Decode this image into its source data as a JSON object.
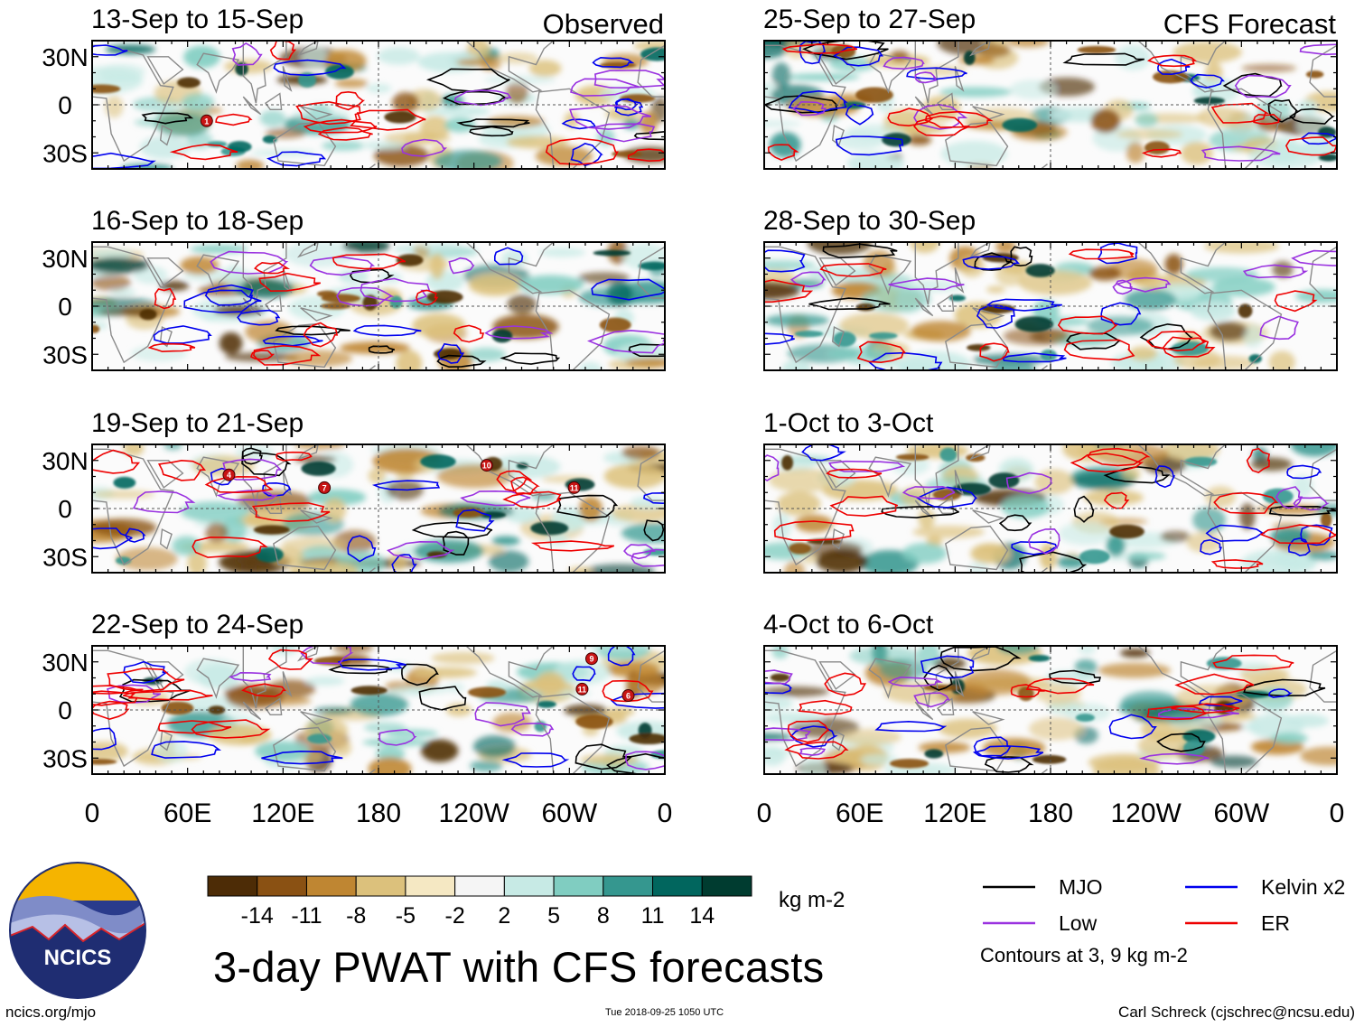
{
  "chart_data": {
    "type": "heatmap",
    "title": "3-day PWAT with CFS forecasts",
    "units": "kg m-2",
    "columns": [
      {
        "header": "Observed",
        "panels": [
          {
            "period": "13-Sep to 15-Sep",
            "storms": [
              {
                "id": "1",
                "lon": 72,
                "lat": -10
              }
            ]
          },
          {
            "period": "16-Sep to 18-Sep",
            "storms": []
          },
          {
            "period": "19-Sep to 21-Sep",
            "storms": [
              {
                "id": "4",
                "lon": 86,
                "lat": 21
              },
              {
                "id": "7",
                "lon": 146,
                "lat": 13
              },
              {
                "id": "10",
                "lon": 248,
                "lat": 27
              },
              {
                "id": "11",
                "lon": 303,
                "lat": 13
              }
            ]
          },
          {
            "period": "22-Sep to 24-Sep",
            "storms": [
              {
                "id": "9",
                "lon": 314,
                "lat": 32
              },
              {
                "id": "11",
                "lon": 308,
                "lat": 13
              },
              {
                "id": "6",
                "lon": 337,
                "lat": 9
              }
            ]
          }
        ]
      },
      {
        "header": "CFS Forecast",
        "panels": [
          {
            "period": "25-Sep to 27-Sep",
            "storms": []
          },
          {
            "period": "28-Sep to 30-Sep",
            "storms": []
          },
          {
            "period": "1-Oct to 3-Oct",
            "storms": []
          },
          {
            "period": "4-Oct to 6-Oct",
            "storms": []
          }
        ]
      }
    ],
    "x_ticks": [
      {
        "label": "0",
        "lon": 0
      },
      {
        "label": "60E",
        "lon": 60
      },
      {
        "label": "120E",
        "lon": 120
      },
      {
        "label": "180",
        "lon": 180
      },
      {
        "label": "120W",
        "lon": 240
      },
      {
        "label": "60W",
        "lon": 300
      },
      {
        "label": "0",
        "lon": 360
      }
    ],
    "y_ticks": [
      {
        "label": "30N",
        "lat": 30
      },
      {
        "label": "0",
        "lat": 0
      },
      {
        "label": "30S",
        "lat": -30
      }
    ],
    "lat_range": [
      -40,
      40
    ],
    "lon_range": [
      0,
      360
    ],
    "colorbar": {
      "ticks": [
        "-14",
        "-11",
        "-8",
        "-5",
        "-2",
        "2",
        "5",
        "8",
        "11",
        "14"
      ],
      "colors": [
        "#4d2c06",
        "#8a5113",
        "#bf8632",
        "#dcc17c",
        "#f5e8c3",
        "#f5f5f5",
        "#c7eae5",
        "#80cdc1",
        "#35978f",
        "#01665e",
        "#003c30"
      ]
    },
    "legend": [
      {
        "label": "MJO",
        "color": "#000000"
      },
      {
        "label": "Kelvin x2",
        "color": "#0000ee"
      },
      {
        "label": "Low",
        "color": "#9a32e0"
      },
      {
        "label": "ER",
        "color": "#ee0000"
      }
    ],
    "contour_note": "Contours at 3, 9 kg m-2"
  },
  "logo": {
    "text": "NCICS"
  },
  "footer": {
    "url": "ncics.org/mjo",
    "timestamp": "Tue 2018-09-25 1050 UTC",
    "author": "Carl Schreck (cjschrec@ncsu.edu)"
  }
}
